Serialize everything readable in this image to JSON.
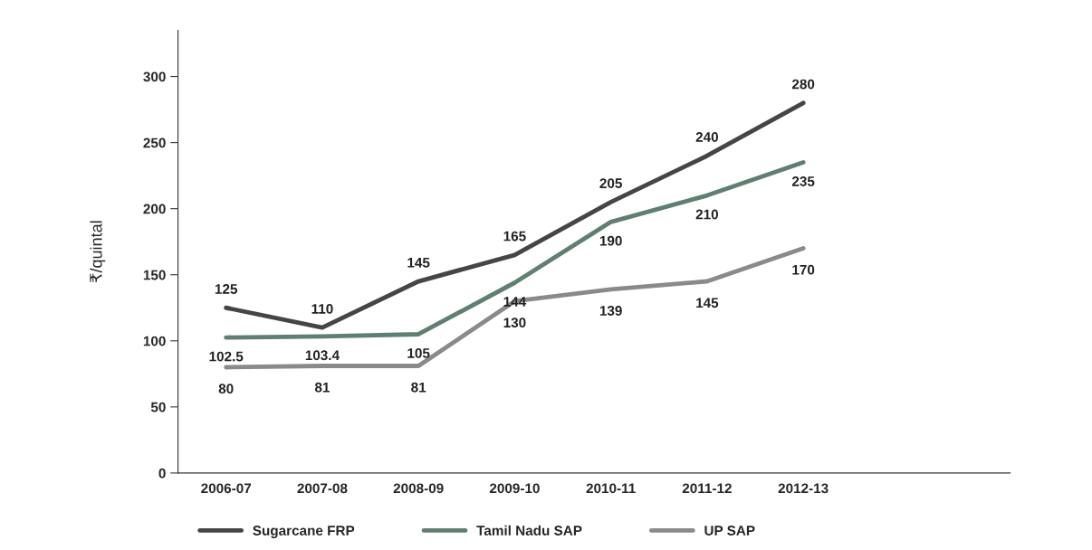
{
  "chart_data": {
    "type": "line",
    "ylabel": "₹/quintal",
    "categories": [
      "2006-07",
      "2007-08",
      "2008-09",
      "2009-10",
      "2010-11",
      "2011-12",
      "2012-13"
    ],
    "series": [
      {
        "name": "Sugarcane FRP",
        "color": "#454545",
        "values": [
          125,
          110,
          145,
          165,
          205,
          240,
          280
        ]
      },
      {
        "name": "Tamil Nadu SAP",
        "color": "#5f8070",
        "values": [
          102.5,
          103.4,
          105,
          144,
          190,
          210,
          235
        ]
      },
      {
        "name": "UP SAP",
        "color": "#8a8a8a",
        "values": [
          80,
          81,
          81,
          130,
          139,
          145,
          170
        ]
      }
    ],
    "ylim": [
      0,
      335
    ],
    "yticks": [
      0,
      50,
      100,
      150,
      200,
      250,
      300
    ],
    "data_labels": true,
    "grid": false,
    "legend": "bottom",
    "marker": "none",
    "line_style": "solid"
  }
}
